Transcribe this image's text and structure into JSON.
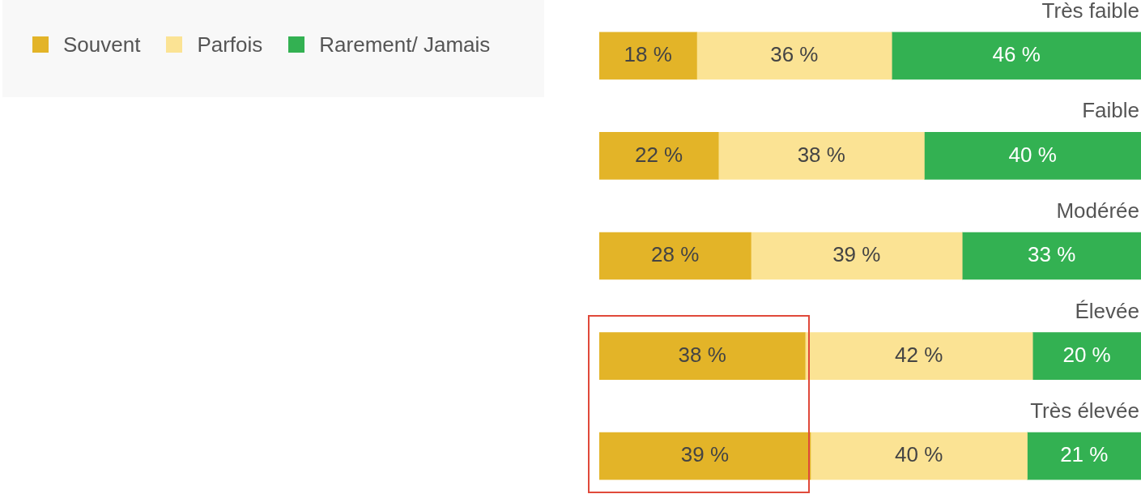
{
  "chart_data": {
    "type": "bar",
    "orientation": "horizontal",
    "stacked": true,
    "legend": "top left",
    "xlim": [
      0,
      100
    ],
    "categories": [
      "Très faible",
      "Faible",
      "Modérée",
      "Élevée",
      "Très élevée"
    ],
    "series": [
      {
        "name": "Souvent",
        "color": "#e3b428",
        "values": [
          18,
          22,
          28,
          38,
          39
        ],
        "value_labels": [
          "18 %",
          "22 %",
          "28 %",
          "38 %",
          "39 %"
        ]
      },
      {
        "name": "Parfois",
        "color": "#fbe394",
        "values": [
          36,
          38,
          39,
          42,
          40
        ],
        "value_labels": [
          "36 %",
          "38 %",
          "39 %",
          "42 %",
          "40 %"
        ]
      },
      {
        "name": "Rarement/ Jamais",
        "color": "#33b152",
        "values": [
          46,
          40,
          33,
          20,
          21
        ],
        "value_labels": [
          "46 %",
          "40 %",
          "33 %",
          "20 %",
          "21 %"
        ]
      }
    ]
  }
}
